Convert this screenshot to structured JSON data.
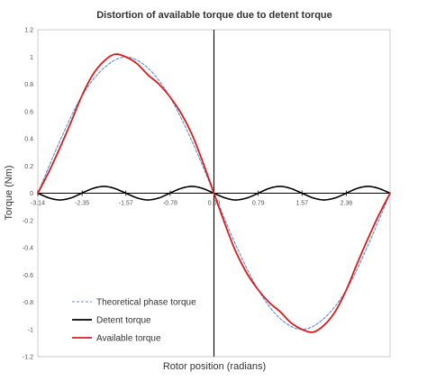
{
  "chart_data": {
    "type": "line",
    "title": "Distortion of available torque due to detent torque",
    "xlabel": "Rotor position (radians)",
    "ylabel": "Torque (Nm)",
    "xlim": [
      -3.14,
      3.14
    ],
    "ylim": [
      -1.2,
      1.2
    ],
    "y_ticks": [
      -1.2,
      -1,
      -0.8,
      -0.6,
      -0.4,
      -0.2,
      0,
      0.2,
      0.4,
      0.6,
      0.8,
      1,
      1.2
    ],
    "y_tick_labels": [
      "-1.2",
      "-1",
      "-0.8",
      "-0.6",
      "-0.4",
      "-0.2",
      "0",
      "0.2",
      "0.4",
      "0.6",
      "0.8",
      "1",
      "1.2"
    ],
    "x_ticks": [
      -3.14,
      -2.35,
      -1.57,
      -0.78,
      0,
      0.79,
      1.57,
      2.36
    ],
    "x_tick_labels": [
      "-3.14",
      "-2.35",
      "-1.57",
      "-0.78",
      "0.00",
      "0.79",
      "1.57",
      "2.36"
    ],
    "grid": false,
    "legend_position": "bottom-left",
    "series": [
      {
        "name": "Theoretical phase torque",
        "color": "#5b8fd6",
        "style": "dashed",
        "x": [
          -3.14,
          -2.75,
          -2.36,
          -1.96,
          -1.57,
          -1.18,
          -0.79,
          -0.39,
          0,
          0.39,
          0.79,
          1.18,
          1.57,
          1.96,
          2.36,
          2.75,
          3.14
        ],
        "y": [
          0,
          0.38,
          0.71,
          0.92,
          1.0,
          0.92,
          0.71,
          0.38,
          0,
          -0.38,
          -0.71,
          -0.92,
          -1.0,
          -0.92,
          -0.71,
          -0.38,
          0
        ]
      },
      {
        "name": "Detent torque",
        "color": "#000000",
        "style": "solid",
        "x": [
          -3.14,
          -2.94,
          -2.75,
          -2.55,
          -2.36,
          -2.16,
          -1.96,
          -1.77,
          -1.57,
          -1.37,
          -1.18,
          -0.98,
          -0.79,
          -0.59,
          -0.39,
          -0.2,
          0,
          0.2,
          0.39,
          0.59,
          0.79,
          0.98,
          1.18,
          1.37,
          1.57,
          1.77,
          1.96,
          2.16,
          2.36,
          2.55,
          2.75,
          2.94,
          3.14
        ],
        "y": [
          0,
          -0.035,
          -0.05,
          -0.035,
          0,
          0.035,
          0.05,
          0.035,
          0,
          -0.035,
          -0.05,
          -0.035,
          0,
          0.035,
          0.05,
          0.035,
          0,
          -0.035,
          -0.05,
          -0.035,
          0,
          0.035,
          0.05,
          0.035,
          0,
          -0.035,
          -0.05,
          -0.035,
          0,
          0.035,
          0.05,
          0.035,
          0
        ]
      },
      {
        "name": "Available torque",
        "color": "#d81e1e",
        "style": "solid",
        "x": [
          -3.14,
          -2.94,
          -2.75,
          -2.55,
          -2.36,
          -2.16,
          -1.96,
          -1.77,
          -1.57,
          -1.37,
          -1.18,
          -0.98,
          -0.79,
          -0.59,
          -0.39,
          -0.2,
          0,
          0.2,
          0.39,
          0.59,
          0.79,
          0.98,
          1.18,
          1.37,
          1.57,
          1.77,
          1.96,
          2.16,
          2.36,
          2.55,
          2.75,
          2.94,
          3.14
        ],
        "y": [
          0,
          0.16,
          0.33,
          0.52,
          0.71,
          0.87,
          0.97,
          1.02,
          1.0,
          0.95,
          0.87,
          0.8,
          0.71,
          0.59,
          0.43,
          0.23,
          0,
          -0.23,
          -0.43,
          -0.59,
          -0.71,
          -0.8,
          -0.87,
          -0.95,
          -1.0,
          -1.02,
          -0.97,
          -0.87,
          -0.71,
          -0.52,
          -0.33,
          -0.16,
          0
        ]
      }
    ]
  }
}
